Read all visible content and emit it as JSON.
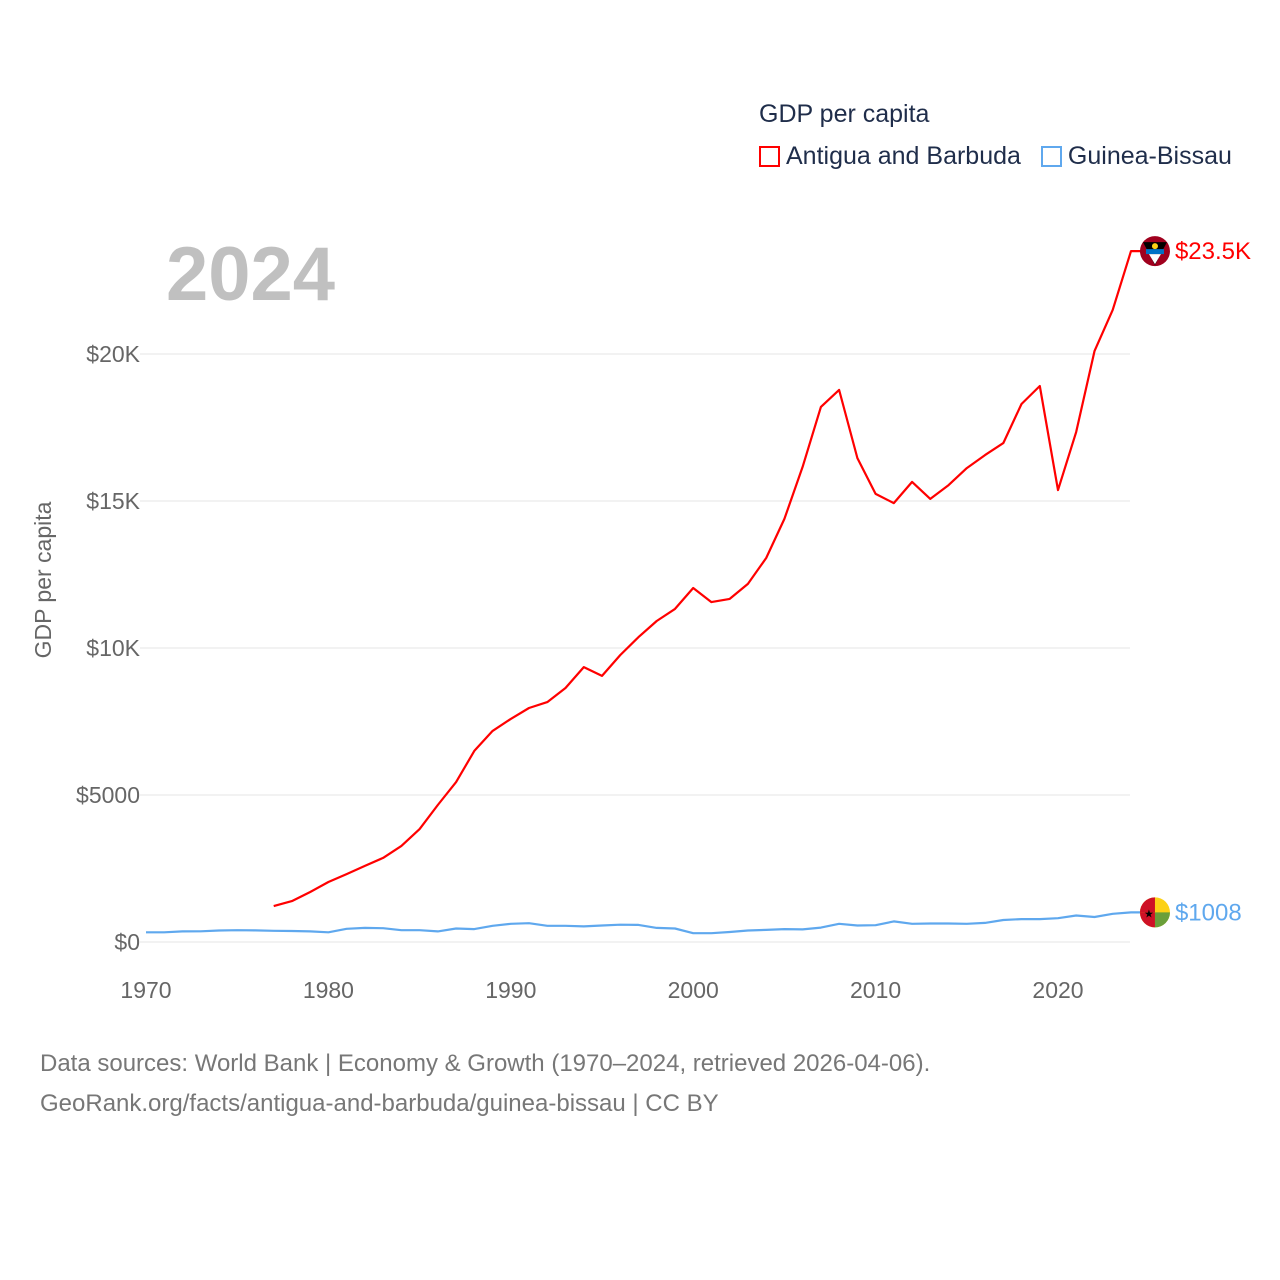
{
  "chart_data": {
    "type": "line",
    "title": "GDP per capita",
    "highlight_year": "2024",
    "ylabel": "GDP per capita",
    "xlabel": "",
    "xlim": [
      1970,
      2024
    ],
    "ylim": [
      0,
      24000
    ],
    "x_ticks": [
      "1970",
      "1980",
      "1990",
      "2000",
      "2010",
      "2020"
    ],
    "y_ticks": [
      {
        "value": 0,
        "label": "$0"
      },
      {
        "value": 5000,
        "label": "$5000"
      },
      {
        "value": 10000,
        "label": "$10K"
      },
      {
        "value": 15000,
        "label": "$15K"
      },
      {
        "value": 20000,
        "label": "$20K"
      }
    ],
    "grid": true,
    "legend_position": "top-right",
    "series": [
      {
        "name": "Antigua and Barbuda",
        "color": "#ff0000",
        "end_label": "$23.5K",
        "start_year": 1977,
        "values": [
          1220,
          1390,
          1700,
          2040,
          2310,
          2590,
          2860,
          3270,
          3840,
          4660,
          5440,
          6500,
          7180,
          7590,
          7960,
          8160,
          8640,
          9350,
          9050,
          9760,
          10370,
          10920,
          11330,
          12040,
          11560,
          11670,
          12180,
          13060,
          14390,
          16160,
          18200,
          18780,
          16460,
          15240,
          14930,
          15650,
          15070,
          15540,
          16120,
          16560,
          16970,
          18300,
          18910,
          15370,
          17350,
          20100,
          21500,
          23500
        ]
      },
      {
        "name": "Guinea-Bissau",
        "color": "#5fa8ee",
        "end_label": "$1008",
        "start_year": 1970,
        "values": [
          330,
          330,
          360,
          365,
          390,
          400,
          395,
          380,
          375,
          360,
          330,
          450,
          480,
          470,
          400,
          400,
          360,
          460,
          440,
          550,
          620,
          640,
          550,
          550,
          530,
          560,
          590,
          580,
          480,
          460,
          300,
          300,
          340,
          390,
          410,
          440,
          430,
          490,
          620,
          560,
          570,
          700,
          620,
          630,
          630,
          620,
          650,
          750,
          780,
          780,
          810,
          900,
          850,
          960,
          1008
        ]
      }
    ]
  },
  "footer": {
    "line1": "Data sources: World Bank | Economy & Growth (1970–2024, retrieved 2026-04-06).",
    "line2": "GeoRank.org/facts/antigua-and-barbuda/guinea-bissau | CC BY"
  }
}
